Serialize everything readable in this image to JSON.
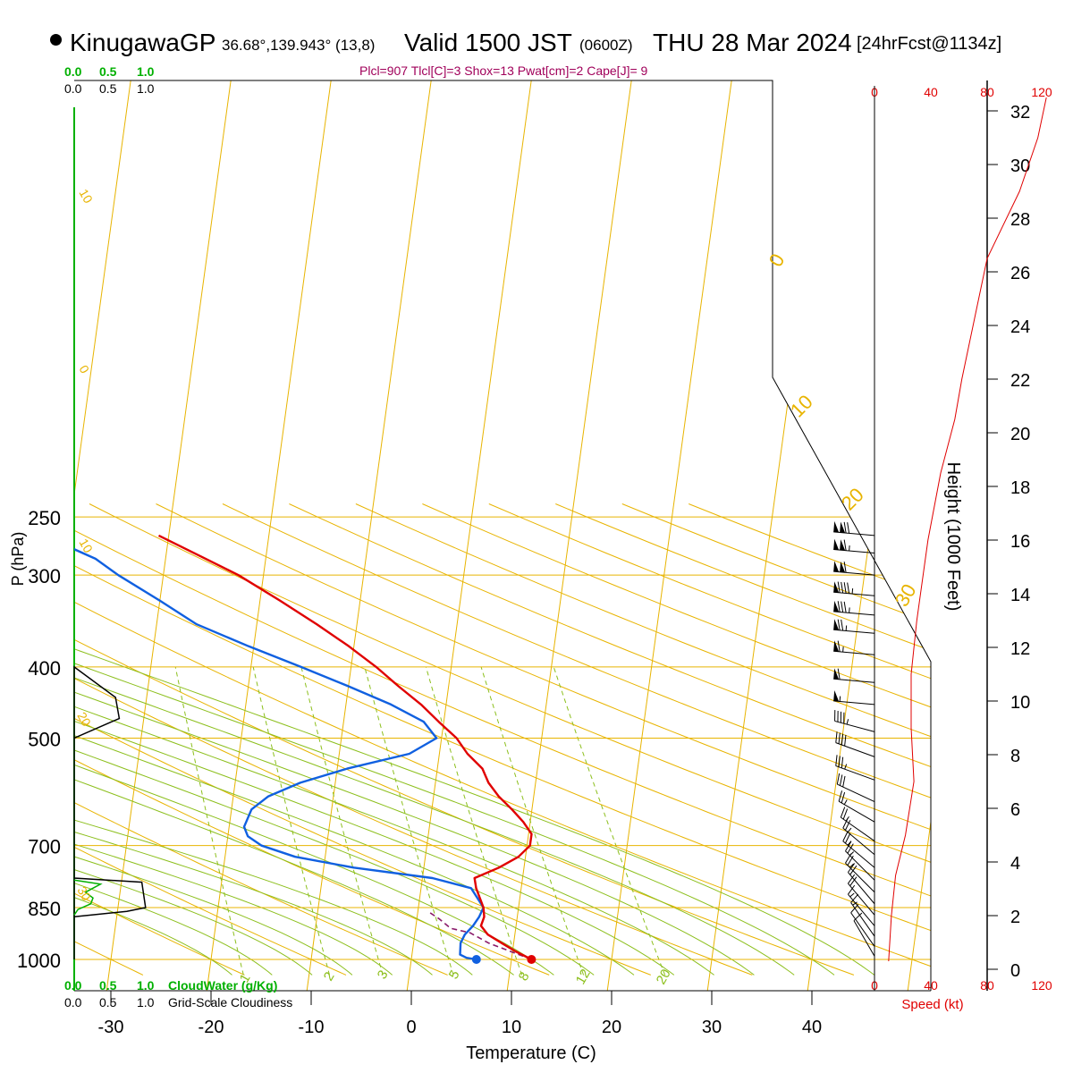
{
  "header": {
    "station": "KinugawaGP",
    "coords": "36.68°,139.943° (13,8)",
    "valid": "Valid 1500 JST",
    "utc": "(0600Z)",
    "day": "THU 28 Mar 2024",
    "forecast": "[24hrFcst@1134z]",
    "indices": "Plcl=907 Tlcl[C]=3 Shox=13 Pwat[cm]=2 Cape[J]= 9"
  },
  "colors": {
    "temperature": "#e00000",
    "dewpoint": "#1060e0",
    "isobar_isotherm": "#e8b400",
    "dry_adiabat": "#8cbf1c",
    "mixing_ratio": "#8cbf1c",
    "cloud_water": "#00b000",
    "cloudiness": "#000000",
    "wind_speed": "#e00000"
  },
  "chart_data": {
    "type": "skew-t",
    "xlabel": "Temperature (C)",
    "ylabel": "P (hPa)",
    "y2label": "Height (1000 Feet)",
    "pressure_ticks": [
      250,
      300,
      400,
      500,
      700,
      850,
      1000
    ],
    "temp_ticks": [
      -30,
      -20,
      -10,
      0,
      10,
      20,
      30,
      40
    ],
    "height_ticks": [
      0,
      2,
      4,
      6,
      8,
      10,
      12,
      14,
      16,
      18,
      20,
      22,
      24,
      26,
      28,
      30,
      32
    ],
    "temperature_profile": [
      {
        "p": 1000,
        "t": 12.0
      },
      {
        "p": 975,
        "t": 10.3
      },
      {
        "p": 950,
        "t": 8.8
      },
      {
        "p": 925,
        "t": 7.3
      },
      {
        "p": 900,
        "t": 6.5
      },
      {
        "p": 875,
        "t": 6.7
      },
      {
        "p": 850,
        "t": 6.5
      },
      {
        "p": 800,
        "t": 5.5
      },
      {
        "p": 775,
        "t": 5.2
      },
      {
        "p": 750,
        "t": 7.5
      },
      {
        "p": 725,
        "t": 9.3
      },
      {
        "p": 700,
        "t": 10.3
      },
      {
        "p": 675,
        "t": 10.3
      },
      {
        "p": 650,
        "t": 9.3
      },
      {
        "p": 625,
        "t": 8.0
      },
      {
        "p": 600,
        "t": 6.5
      },
      {
        "p": 575,
        "t": 5.3
      },
      {
        "p": 550,
        "t": 4.5
      },
      {
        "p": 525,
        "t": 2.8
      },
      {
        "p": 500,
        "t": 1.5
      },
      {
        "p": 475,
        "t": -0.5
      },
      {
        "p": 450,
        "t": -2.5
      },
      {
        "p": 425,
        "t": -5.0
      },
      {
        "p": 400,
        "t": -7.5
      },
      {
        "p": 375,
        "t": -10.5
      },
      {
        "p": 350,
        "t": -14.0
      },
      {
        "p": 325,
        "t": -18.0
      },
      {
        "p": 300,
        "t": -22.5
      },
      {
        "p": 285,
        "t": -26.0
      },
      {
        "p": 265,
        "t": -31.0
      }
    ],
    "dewpoint_profile": [
      {
        "p": 1000,
        "t": 6.5
      },
      {
        "p": 995,
        "t": 5.5
      },
      {
        "p": 985,
        "t": 4.8
      },
      {
        "p": 950,
        "t": 4.7
      },
      {
        "p": 925,
        "t": 5.0
      },
      {
        "p": 900,
        "t": 5.7
      },
      {
        "p": 875,
        "t": 6.2
      },
      {
        "p": 850,
        "t": 6.5
      },
      {
        "p": 800,
        "t": 5.0
      },
      {
        "p": 775,
        "t": 1.0
      },
      {
        "p": 750,
        "t": -7.0
      },
      {
        "p": 725,
        "t": -13.0
      },
      {
        "p": 700,
        "t": -16.5
      },
      {
        "p": 680,
        "t": -18.0
      },
      {
        "p": 660,
        "t": -18.5
      },
      {
        "p": 625,
        "t": -18.0
      },
      {
        "p": 600,
        "t": -16.5
      },
      {
        "p": 575,
        "t": -13.5
      },
      {
        "p": 550,
        "t": -9.0
      },
      {
        "p": 525,
        "t": -3.0
      },
      {
        "p": 500,
        "t": -0.5
      },
      {
        "p": 475,
        "t": -2.0
      },
      {
        "p": 450,
        "t": -5.5
      },
      {
        "p": 425,
        "t": -10.0
      },
      {
        "p": 400,
        "t": -15.0
      },
      {
        "p": 375,
        "t": -20.5
      },
      {
        "p": 350,
        "t": -26.0
      },
      {
        "p": 325,
        "t": -30.0
      },
      {
        "p": 300,
        "t": -34.5
      },
      {
        "p": 285,
        "t": -37.0
      },
      {
        "p": 265,
        "t": -42.5
      }
    ],
    "parcel_path": [
      {
        "p": 1000,
        "t": 12.0
      },
      {
        "p": 950,
        "t": 7.5
      },
      {
        "p": 920,
        "t": 5.5
      },
      {
        "p": 907,
        "t": 3.5
      },
      {
        "p": 880,
        "t": 2.2
      },
      {
        "p": 860,
        "t": 1.0
      }
    ],
    "dry_adiabat_labels": [
      "10",
      "0",
      "10",
      "20",
      "30",
      "0",
      "10",
      "20",
      "30"
    ],
    "mixing_ratio_labels": [
      "1",
      "2",
      "3",
      "5",
      "8",
      "12",
      "20"
    ],
    "cloud_water_axis": [
      "0.0",
      "0.5",
      "1.0"
    ],
    "cloudiness_axis": [
      "0.0",
      "0.5",
      "1.0"
    ],
    "cloud_water_label": "CloudWater (g/Kg)",
    "cloudiness_label": "Grid-Scale Cloudiness",
    "cloudiness_profile": [
      {
        "p": 1000,
        "v": 0.0
      },
      {
        "p": 400,
        "v": 0.0
      },
      {
        "p": 440,
        "v": 0.55
      },
      {
        "p": 470,
        "v": 0.6
      },
      {
        "p": 500,
        "v": 0.0
      },
      {
        "p": 775,
        "v": 0.0
      },
      {
        "p": 785,
        "v": 0.9
      },
      {
        "p": 850,
        "v": 0.95
      },
      {
        "p": 860,
        "v": 0.7
      },
      {
        "p": 875,
        "v": 0.0
      }
    ],
    "cloud_water_profile": [
      {
        "p": 780,
        "v": 0.0
      },
      {
        "p": 790,
        "v": 0.35
      },
      {
        "p": 810,
        "v": 0.15
      },
      {
        "p": 825,
        "v": 0.25
      },
      {
        "p": 840,
        "v": 0.22
      },
      {
        "p": 855,
        "v": 0.05
      },
      {
        "p": 870,
        "v": 0.0
      }
    ],
    "wind_speed_label": "Speed (kt)",
    "wind_speed_ticks": [
      "0",
      "40",
      "80",
      "120"
    ],
    "wind_speed_profile": [
      {
        "h": 0.3,
        "v": 10
      },
      {
        "h": 2.0,
        "v": 12
      },
      {
        "h": 3.5,
        "v": 15
      },
      {
        "h": 5.0,
        "v": 22
      },
      {
        "h": 7.0,
        "v": 28
      },
      {
        "h": 9.0,
        "v": 26
      },
      {
        "h": 11.0,
        "v": 26
      },
      {
        "h": 13.0,
        "v": 30
      },
      {
        "h": 16.0,
        "v": 38
      },
      {
        "h": 18.5,
        "v": 47
      },
      {
        "h": 20.5,
        "v": 57
      },
      {
        "h": 22.0,
        "v": 62
      },
      {
        "h": 24.5,
        "v": 72
      },
      {
        "h": 26.5,
        "v": 80
      },
      {
        "h": 29.0,
        "v": 103
      },
      {
        "h": 31.0,
        "v": 116
      },
      {
        "h": 32.5,
        "v": 122
      }
    ],
    "wind_barbs": [
      {
        "p": 265,
        "dir": 275,
        "kt": 120
      },
      {
        "p": 280,
        "dir": 275,
        "kt": 115
      },
      {
        "p": 300,
        "dir": 275,
        "kt": 110
      },
      {
        "p": 320,
        "dir": 275,
        "kt": 95
      },
      {
        "p": 340,
        "dir": 275,
        "kt": 85
      },
      {
        "p": 360,
        "dir": 275,
        "kt": 75
      },
      {
        "p": 385,
        "dir": 275,
        "kt": 65
      },
      {
        "p": 420,
        "dir": 275,
        "kt": 60
      },
      {
        "p": 450,
        "dir": 275,
        "kt": 55
      },
      {
        "p": 490,
        "dir": 285,
        "kt": 45
      },
      {
        "p": 530,
        "dir": 290,
        "kt": 40
      },
      {
        "p": 570,
        "dir": 290,
        "kt": 35
      },
      {
        "p": 610,
        "dir": 295,
        "kt": 30
      },
      {
        "p": 650,
        "dir": 300,
        "kt": 28
      },
      {
        "p": 690,
        "dir": 305,
        "kt": 25
      },
      {
        "p": 720,
        "dir": 310,
        "kt": 25
      },
      {
        "p": 750,
        "dir": 310,
        "kt": 25
      },
      {
        "p": 780,
        "dir": 315,
        "kt": 25
      },
      {
        "p": 810,
        "dir": 315,
        "kt": 25
      },
      {
        "p": 840,
        "dir": 320,
        "kt": 22
      },
      {
        "p": 870,
        "dir": 320,
        "kt": 20
      },
      {
        "p": 900,
        "dir": 320,
        "kt": 18
      },
      {
        "p": 930,
        "dir": 325,
        "kt": 15
      },
      {
        "p": 960,
        "dir": 325,
        "kt": 12
      },
      {
        "p": 990,
        "dir": 330,
        "kt": 10
      }
    ]
  }
}
